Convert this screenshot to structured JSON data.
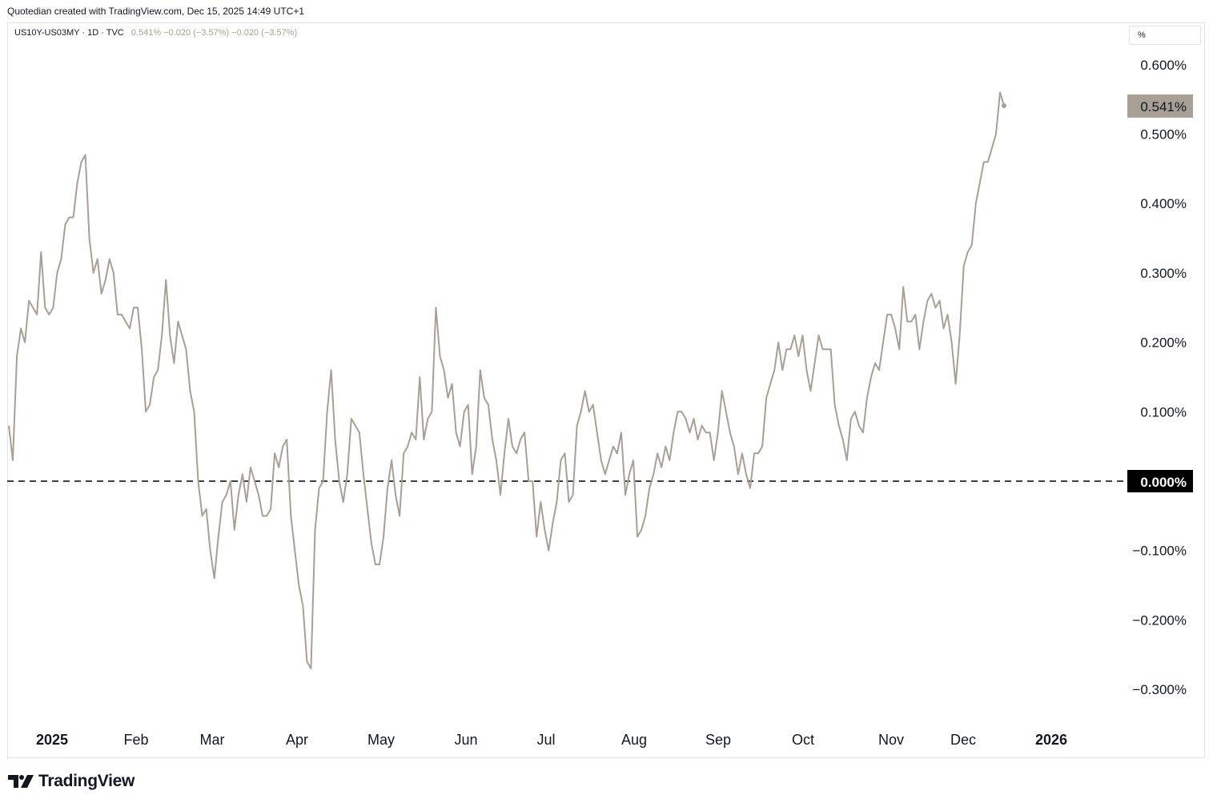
{
  "header": {
    "caption": "Quotedian created with TradingView.com, Dec 15, 2025 14:49 UTC+1"
  },
  "legend": {
    "symbol": "US10Y-US03MY · 1D · TVC",
    "values": "0.541%  −0.020 (−3.57%)  −0.020 (−3.57%)"
  },
  "scale_button": {
    "label": "%"
  },
  "footer": {
    "brand": "TradingView"
  },
  "colors": {
    "series": "#a89f95",
    "zero_label_bg": "#000000",
    "last_label_bg": "#a89f95"
  },
  "chart_data": {
    "type": "line",
    "title": "",
    "xlabel": "",
    "ylabel": "",
    "ylim": [
      -0.33,
      0.63
    ],
    "x_ticks": [
      "2025",
      "Feb",
      "Mar",
      "Apr",
      "May",
      "Jun",
      "Jul",
      "Aug",
      "Sep",
      "Oct",
      "Nov",
      "Dec",
      "2026"
    ],
    "y_ticks": [
      "0.600%",
      "0.500%",
      "0.400%",
      "0.300%",
      "0.200%",
      "0.100%",
      "0.000%",
      "−0.100%",
      "−0.200%",
      "−0.300%"
    ],
    "reference_line": {
      "value": 0.0,
      "label": "0.000%",
      "style": "dashed"
    },
    "last_value": {
      "value": 0.541,
      "label": "0.541%"
    },
    "series": [
      {
        "values": [
          0.08,
          0.03,
          0.18,
          0.22,
          0.2,
          0.26,
          0.25,
          0.24,
          0.33,
          0.25,
          0.24,
          0.25,
          0.3,
          0.32,
          0.37,
          0.38,
          0.38,
          0.43,
          0.46,
          0.47,
          0.35,
          0.3,
          0.32,
          0.27,
          0.29,
          0.32,
          0.3,
          0.24,
          0.24,
          0.23,
          0.22,
          0.25,
          0.25,
          0.19,
          0.1,
          0.11,
          0.15,
          0.16,
          0.21,
          0.29,
          0.21,
          0.17,
          0.23,
          0.21,
          0.19,
          0.13,
          0.1,
          0.0,
          -0.05,
          -0.04,
          -0.1,
          -0.14,
          -0.08,
          -0.03,
          -0.02,
          0.0,
          -0.07,
          -0.02,
          0.01,
          -0.03,
          0.02,
          0.0,
          -0.02,
          -0.05,
          -0.05,
          -0.04,
          0.04,
          0.02,
          0.05,
          0.06,
          -0.05,
          -0.1,
          -0.15,
          -0.18,
          -0.26,
          -0.27,
          -0.07,
          -0.01,
          0.0,
          0.1,
          0.16,
          0.06,
          0.0,
          -0.03,
          0.01,
          0.09,
          0.08,
          0.07,
          0.01,
          -0.04,
          -0.09,
          -0.12,
          -0.12,
          -0.08,
          -0.01,
          0.03,
          -0.02,
          -0.05,
          0.04,
          0.05,
          0.07,
          0.06,
          0.15,
          0.06,
          0.09,
          0.1,
          0.25,
          0.18,
          0.16,
          0.12,
          0.14,
          0.07,
          0.05,
          0.1,
          0.11,
          0.01,
          0.05,
          0.16,
          0.12,
          0.11,
          0.06,
          0.03,
          -0.02,
          0.04,
          0.09,
          0.05,
          0.04,
          0.06,
          0.07,
          0.0,
          0.0,
          -0.08,
          -0.03,
          -0.07,
          -0.1,
          -0.06,
          -0.03,
          0.03,
          0.04,
          -0.03,
          -0.02,
          0.08,
          0.1,
          0.13,
          0.1,
          0.11,
          0.07,
          0.03,
          0.01,
          0.03,
          0.05,
          0.04,
          0.07,
          -0.02,
          0.01,
          0.03,
          -0.08,
          -0.07,
          -0.05,
          -0.01,
          0.01,
          0.04,
          0.02,
          0.05,
          0.03,
          0.07,
          0.1,
          0.1,
          0.09,
          0.07,
          0.09,
          0.06,
          0.08,
          0.07,
          0.07,
          0.03,
          0.07,
          0.13,
          0.1,
          0.07,
          0.05,
          0.01,
          0.04,
          0.01,
          -0.01,
          0.04,
          0.04,
          0.05,
          0.12,
          0.14,
          0.16,
          0.2,
          0.16,
          0.19,
          0.19,
          0.21,
          0.18,
          0.21,
          0.16,
          0.13,
          0.17,
          0.21,
          0.19,
          0.19,
          0.19,
          0.11,
          0.08,
          0.06,
          0.03,
          0.09,
          0.1,
          0.08,
          0.07,
          0.12,
          0.15,
          0.17,
          0.16,
          0.2,
          0.24,
          0.24,
          0.22,
          0.19,
          0.28,
          0.23,
          0.23,
          0.24,
          0.19,
          0.23,
          0.26,
          0.27,
          0.25,
          0.26,
          0.22,
          0.24,
          0.2,
          0.14,
          0.21,
          0.31,
          0.33,
          0.34,
          0.4,
          0.43,
          0.46,
          0.46,
          0.48,
          0.5,
          0.56,
          0.541
        ]
      }
    ]
  }
}
